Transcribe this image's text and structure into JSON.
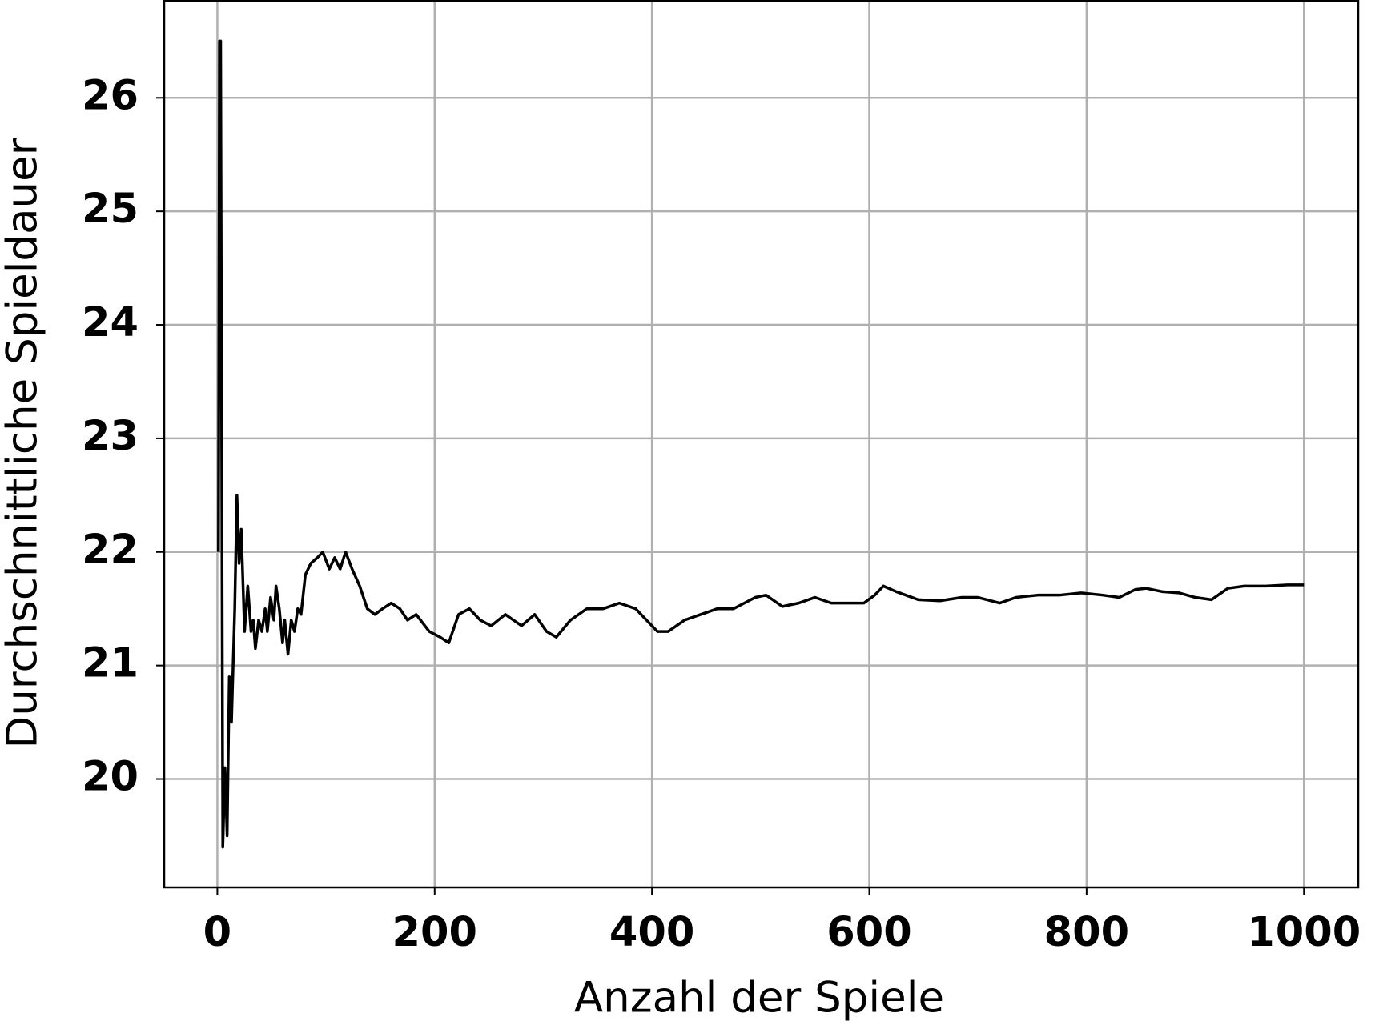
{
  "chart_data": {
    "type": "line",
    "xlabel": "Anzahl der Spiele",
    "ylabel": "Durchschnittliche Spieldauer",
    "x": [
      1,
      2,
      3,
      5,
      7,
      9,
      11,
      13,
      16,
      18,
      20,
      22,
      25,
      28,
      31,
      33,
      35,
      38,
      41,
      44,
      46,
      49,
      52,
      54,
      57,
      60,
      62,
      65,
      68,
      71,
      74,
      77,
      81,
      86,
      92,
      97,
      103,
      108,
      113,
      118,
      124,
      131,
      138,
      145,
      152,
      160,
      168,
      175,
      183,
      195,
      205,
      213,
      222,
      232,
      242,
      252,
      265,
      280,
      292,
      303,
      312,
      325,
      340,
      355,
      370,
      385,
      395,
      405,
      415,
      430,
      445,
      460,
      475,
      485,
      495,
      505,
      520,
      535,
      550,
      565,
      580,
      595,
      605,
      613,
      625,
      645,
      665,
      685,
      700,
      720,
      735,
      755,
      775,
      795,
      815,
      830,
      845,
      855,
      870,
      885,
      900,
      915,
      930,
      945,
      965,
      985,
      1000
    ],
    "series": [
      {
        "name": "Durchschnittliche Spieldauer",
        "color": "#000000",
        "values": [
          22,
          26.5,
          26.5,
          19.4,
          20.1,
          19.5,
          20.9,
          20.5,
          21.5,
          22.5,
          21.9,
          22.2,
          21.3,
          21.7,
          21.3,
          21.4,
          21.15,
          21.4,
          21.3,
          21.5,
          21.3,
          21.6,
          21.4,
          21.7,
          21.5,
          21.2,
          21.4,
          21.1,
          21.4,
          21.3,
          21.5,
          21.45,
          21.8,
          21.9,
          21.95,
          22.0,
          21.85,
          21.95,
          21.85,
          22.0,
          21.85,
          21.7,
          21.5,
          21.45,
          21.5,
          21.55,
          21.5,
          21.4,
          21.45,
          21.3,
          21.25,
          21.2,
          21.45,
          21.5,
          21.4,
          21.35,
          21.45,
          21.35,
          21.45,
          21.3,
          21.25,
          21.4,
          21.5,
          21.5,
          21.55,
          21.5,
          21.4,
          21.3,
          21.3,
          21.4,
          21.45,
          21.5,
          21.5,
          21.55,
          21.6,
          21.62,
          21.52,
          21.55,
          21.6,
          21.55,
          21.55,
          21.55,
          21.62,
          21.7,
          21.65,
          21.58,
          21.57,
          21.6,
          21.6,
          21.55,
          21.6,
          21.62,
          21.62,
          21.64,
          21.62,
          21.6,
          21.67,
          21.68,
          21.65,
          21.64,
          21.6,
          21.58,
          21.68,
          21.7,
          21.7,
          21.71,
          21.71
        ]
      }
    ],
    "xlim": [
      -48.95,
      1049.95
    ],
    "xticks": [
      0,
      200,
      400,
      600,
      800,
      1000
    ],
    "ylim": [
      19.045,
      26.855
    ],
    "yticks": [
      20,
      21,
      22,
      23,
      24,
      25,
      26
    ],
    "grid": true
  }
}
